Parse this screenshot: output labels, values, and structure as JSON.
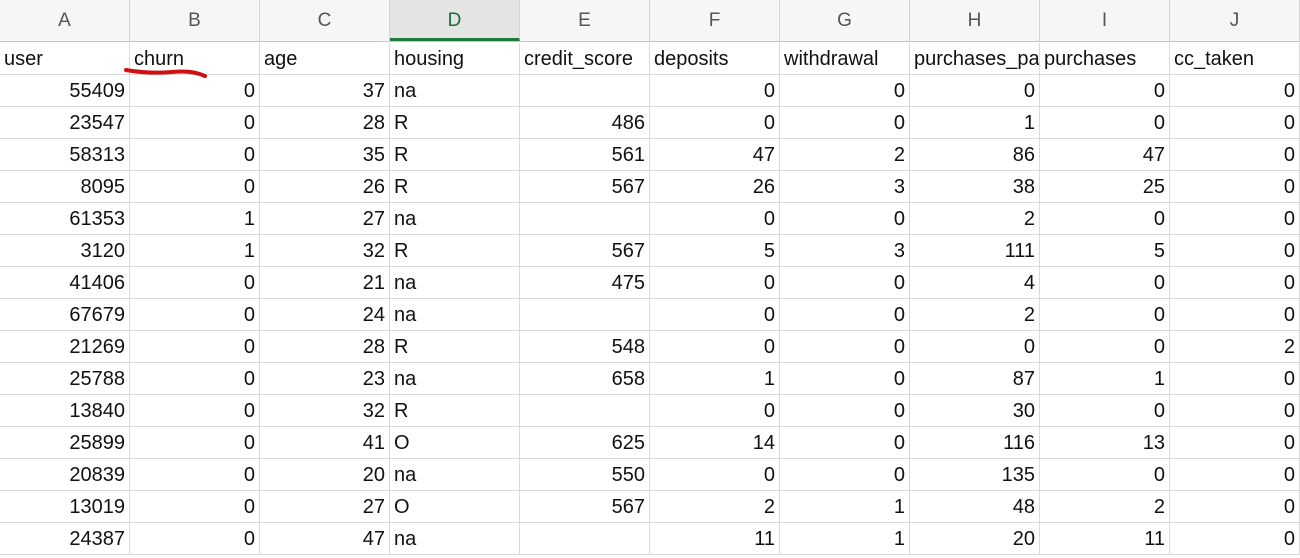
{
  "column_letters": [
    "A",
    "B",
    "C",
    "D",
    "E",
    "F",
    "G",
    "H",
    "I",
    "J"
  ],
  "active_column": 3,
  "headers": [
    "user",
    "churn",
    "age",
    "housing",
    "credit_score",
    "deposits",
    "withdrawal",
    "purchases_partners",
    "purchases",
    "cc_taken"
  ],
  "rows": [
    [
      "55409",
      "0",
      "37",
      "na",
      "",
      "0",
      "0",
      "0",
      "0",
      "0"
    ],
    [
      "23547",
      "0",
      "28",
      "R",
      "486",
      "0",
      "0",
      "1",
      "0",
      "0"
    ],
    [
      "58313",
      "0",
      "35",
      "R",
      "561",
      "47",
      "2",
      "86",
      "47",
      "0"
    ],
    [
      "8095",
      "0",
      "26",
      "R",
      "567",
      "26",
      "3",
      "38",
      "25",
      "0"
    ],
    [
      "61353",
      "1",
      "27",
      "na",
      "",
      "0",
      "0",
      "2",
      "0",
      "0"
    ],
    [
      "3120",
      "1",
      "32",
      "R",
      "567",
      "5",
      "3",
      "111",
      "5",
      "0"
    ],
    [
      "41406",
      "0",
      "21",
      "na",
      "475",
      "0",
      "0",
      "4",
      "0",
      "0"
    ],
    [
      "67679",
      "0",
      "24",
      "na",
      "",
      "0",
      "0",
      "2",
      "0",
      "0"
    ],
    [
      "21269",
      "0",
      "28",
      "R",
      "548",
      "0",
      "0",
      "0",
      "0",
      "2"
    ],
    [
      "25788",
      "0",
      "23",
      "na",
      "658",
      "1",
      "0",
      "87",
      "1",
      "0"
    ],
    [
      "13840",
      "0",
      "32",
      "R",
      "",
      "0",
      "0",
      "30",
      "0",
      "0"
    ],
    [
      "25899",
      "0",
      "41",
      "O",
      "625",
      "14",
      "0",
      "116",
      "13",
      "0"
    ],
    [
      "20839",
      "0",
      "20",
      "na",
      "550",
      "0",
      "0",
      "135",
      "0",
      "0"
    ],
    [
      "13019",
      "0",
      "27",
      "O",
      "567",
      "2",
      "1",
      "48",
      "2",
      "0"
    ],
    [
      "24387",
      "0",
      "47",
      "na",
      "",
      "11",
      "1",
      "20",
      "11",
      "0"
    ]
  ],
  "text_columns": [
    3
  ],
  "annotation": {
    "target_header": "churn",
    "color": "#d01010"
  },
  "colors": {
    "active_header_text": "#1e6b37",
    "active_header_border": "#1e7a3d",
    "annotation_stroke": "#d01010"
  }
}
